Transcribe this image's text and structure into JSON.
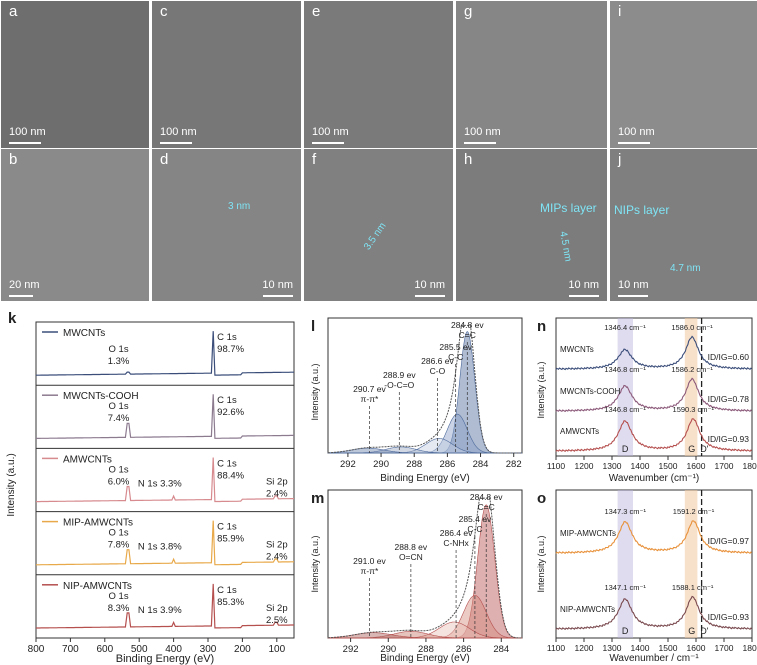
{
  "tem": {
    "a": {
      "label": "a",
      "scale": "100 nm"
    },
    "b": {
      "label": "b",
      "scale": "20 nm"
    },
    "c": {
      "label": "c",
      "scale": "100 nm"
    },
    "d": {
      "label": "d",
      "scale": "10 nm",
      "ann": "3 nm"
    },
    "e": {
      "label": "e",
      "scale": "100 nm"
    },
    "f": {
      "label": "f",
      "scale": "10 nm",
      "ann": "3.5 nm"
    },
    "g": {
      "label": "g",
      "scale": "100 nm"
    },
    "h": {
      "label": "h",
      "scale": "10 nm",
      "ann": "MIPs layer",
      "ann2": "4.5 nm"
    },
    "i": {
      "label": "i",
      "scale": "100 nm"
    },
    "j": {
      "label": "j",
      "scale": "10 nm",
      "ann": "NIPs layer",
      "ann2": "4.7 nm"
    }
  },
  "panel_k": {
    "label": "k",
    "xlabel": "Binding Energy (eV)",
    "ylabel": "Intensity (a.u.)",
    "xticks": [
      "800",
      "700",
      "600",
      "500",
      "400",
      "300",
      "200",
      "100"
    ],
    "rows": [
      {
        "name": "MWCNTs",
        "color": "#3b4e7a",
        "o1s": "O 1s",
        "o_pct": "1.3%",
        "c1s": "C 1s",
        "c_pct": "98.7%"
      },
      {
        "name": "MWCNTs-COOH",
        "color": "#8c7a8f",
        "o1s": "O 1s",
        "o_pct": "7.4%",
        "c1s": "C 1s",
        "c_pct": "92.6%"
      },
      {
        "name": "AMWCNTs",
        "color": "#d78b8f",
        "o1s": "O 1s",
        "o_pct": "6.0%",
        "n1s": "N 1s 3.3%",
        "c1s": "C 1s",
        "c_pct": "88.4%",
        "si": "Si 2p",
        "si_pct": "2.4%"
      },
      {
        "name": "MIP-AMWCNTs",
        "color": "#e8a94a",
        "o1s": "O 1s",
        "o_pct": "7.8%",
        "n1s": "N 1s 3.8%",
        "c1s": "C 1s",
        "c_pct": "85.9%",
        "si": "Si 2p",
        "si_pct": "2.4%"
      },
      {
        "name": "NIP-AMWCNTs",
        "color": "#b5504f",
        "o1s": "O 1s",
        "o_pct": "8.3%",
        "n1s": "N 1s 3.9%",
        "c1s": "C 1s",
        "c_pct": "85.3%",
        "si": "Si 2p",
        "si_pct": "2.5%"
      }
    ]
  },
  "panel_l": {
    "label": "l",
    "xlabel": "Binding Energy (eV)",
    "ylabel": "Intensity (a.u.)",
    "xticks": [
      "292",
      "290",
      "288",
      "286",
      "284",
      "282"
    ],
    "peaks": [
      {
        "pos": 284.8,
        "text1": "284.8 ev",
        "text2": "C=C"
      },
      {
        "pos": 285.5,
        "text1": "285.5 ev",
        "text2": "C-C"
      },
      {
        "pos": 286.6,
        "text1": "286.6 ev",
        "text2": "C-O"
      },
      {
        "pos": 288.9,
        "text1": "288.9 ev",
        "text2": "-O-C=O"
      },
      {
        "pos": 290.7,
        "text1": "290.7 ev",
        "text2": "π-π*"
      }
    ]
  },
  "panel_m": {
    "label": "m",
    "xlabel": "Binding Energy (eV)",
    "ylabel": "Intensity (a.u.)",
    "xticks": [
      "292",
      "290",
      "288",
      "286",
      "284"
    ],
    "peaks": [
      {
        "pos": 284.8,
        "text1": "284.8 ev",
        "text2": "C=C"
      },
      {
        "pos": 285.4,
        "text1": "285.4 ev",
        "text2": "C-C"
      },
      {
        "pos": 286.4,
        "text1": "286.4 ev",
        "text2": "C-NHx"
      },
      {
        "pos": 288.8,
        "text1": "288.8 ev",
        "text2": "O=CN"
      },
      {
        "pos": 291.0,
        "text1": "291.0 ev",
        "text2": "π-π*"
      }
    ]
  },
  "panel_n": {
    "label": "n",
    "xlabel": "Wavenumber (cm⁻¹)",
    "ylabel": "Intensity (a.u.)",
    "xticks": [
      "1100",
      "1200",
      "1300",
      "1400",
      "1500",
      "1600",
      "1700",
      "1800"
    ],
    "d_label": "D",
    "g_label": "G",
    "dp_label": "D'",
    "rows": [
      {
        "name": "MWCNTs",
        "color": "#3b4e7a",
        "d": "1346.4 cm⁻¹",
        "g": "1586.0 cm⁻¹",
        "ratio": "ID/IG=0.60"
      },
      {
        "name": "MWCNTs-COOH",
        "color": "#8c5a7a",
        "d": "1346.8 cm⁻¹",
        "g": "1586.2 cm⁻¹",
        "ratio": "ID/IG=0.78"
      },
      {
        "name": "AMWCNTs",
        "color": "#b5504f",
        "d": "1346.8 cm⁻¹",
        "g": "1590.3 cm⁻¹",
        "ratio": "ID/IG=0.93"
      }
    ]
  },
  "panel_o": {
    "label": "o",
    "xlabel": "Wavenumber / cm⁻¹",
    "ylabel": "Intensity (a.u.)",
    "xticks": [
      "1100",
      "1200",
      "1300",
      "1400",
      "1500",
      "1600",
      "1700",
      "1800"
    ],
    "d_label": "D",
    "g_label": "G",
    "dp_label": "D'",
    "rows": [
      {
        "name": "MIP-AMWCNTs",
        "color": "#e8913a",
        "d": "1347.3 cm⁻¹",
        "g": "1591.2 cm⁻¹",
        "ratio": "ID/IG=0.97"
      },
      {
        "name": "NIP-AMWCNTs",
        "color": "#7a4a4f",
        "d": "1347.1 cm⁻¹",
        "g": "1588.1 cm⁻¹",
        "ratio": "ID/IG=0.93"
      }
    ]
  }
}
